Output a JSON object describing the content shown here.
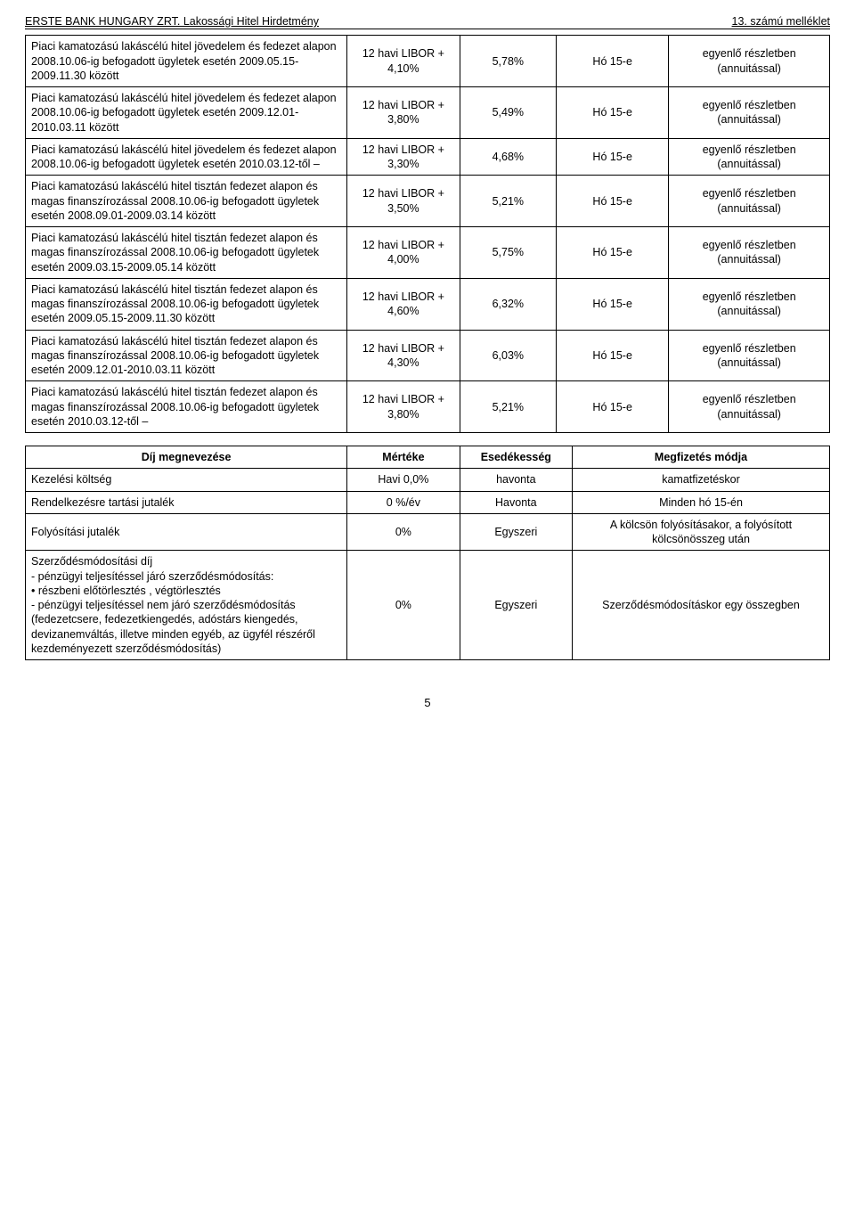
{
  "header": {
    "left": "ERSTE BANK HUNGARY ZRT. Lakossági Hitel Hirdetmény",
    "right": "13. számú melléklet"
  },
  "main_rows": [
    {
      "product": "Piaci kamatozású lakáscélú hitel jövedelem és fedezet alapon 2008.10.06-ig befogadott ügyletek esetén 2009.05.15-2009.11.30 között",
      "rate_line1": "12 havi LIBOR +",
      "rate_line2": "4,10%",
      "pct": "5,78%",
      "due": "Hó 15-e",
      "pay1": "egyenlő részletben",
      "pay2": "(annuitással)"
    },
    {
      "product": "Piaci kamatozású lakáscélú hitel jövedelem és fedezet alapon 2008.10.06-ig befogadott ügyletek esetén 2009.12.01-2010.03.11 között",
      "rate_line1": "12 havi LIBOR +",
      "rate_line2": "3,80%",
      "pct": "5,49%",
      "due": "Hó 15-e",
      "pay1": "egyenlő részletben",
      "pay2": "(annuitással)"
    },
    {
      "product": "Piaci kamatozású lakáscélú hitel jövedelem és fedezet alapon 2008.10.06-ig befogadott ügyletek esetén 2010.03.12-től –",
      "rate_line1": "12 havi LIBOR +",
      "rate_line2": "3,30%",
      "pct": "4,68%",
      "due": "Hó 15-e",
      "pay1": "egyenlő részletben",
      "pay2": "(annuitással)"
    },
    {
      "product": "Piaci kamatozású lakáscélú hitel tisztán fedezet alapon és magas finanszírozással 2008.10.06-ig befogadott ügyletek esetén 2008.09.01-2009.03.14 között",
      "rate_line1": "12 havi LIBOR +",
      "rate_line2": "3,50%",
      "pct": "5,21%",
      "due": "Hó 15-e",
      "pay1": "egyenlő részletben",
      "pay2": "(annuitással)"
    },
    {
      "product": "Piaci kamatozású lakáscélú hitel tisztán fedezet alapon és magas finanszírozással 2008.10.06-ig befogadott ügyletek esetén 2009.03.15-2009.05.14 között",
      "rate_line1": "12 havi LIBOR +",
      "rate_line2": "4,00%",
      "pct": "5,75%",
      "due": "Hó 15-e",
      "pay1": "egyenlő részletben",
      "pay2": "(annuitással)"
    },
    {
      "product": "Piaci kamatozású lakáscélú hitel tisztán fedezet alapon és magas finanszírozással 2008.10.06-ig befogadott ügyletek esetén 2009.05.15-2009.11.30 között",
      "rate_line1": "12 havi LIBOR +",
      "rate_line2": "4,60%",
      "pct": "6,32%",
      "due": "Hó 15-e",
      "pay1": "egyenlő részletben",
      "pay2": "(annuitással)"
    },
    {
      "product": "Piaci kamatozású lakáscélú hitel tisztán fedezet alapon és magas finanszírozással 2008.10.06-ig befogadott ügyletek esetén 2009.12.01-2010.03.11 között",
      "rate_line1": "12 havi LIBOR +",
      "rate_line2": "4,30%",
      "pct": "6,03%",
      "due": "Hó 15-e",
      "pay1": "egyenlő részletben",
      "pay2": "(annuitással)"
    },
    {
      "product": "Piaci kamatozású lakáscélú hitel tisztán fedezet alapon és magas finanszírozással 2008.10.06-ig befogadott ügyletek esetén 2010.03.12-től –",
      "rate_line1": "12 havi LIBOR +",
      "rate_line2": "3,80%",
      "pct": "5,21%",
      "due": "Hó 15-e",
      "pay1": "egyenlő részletben",
      "pay2": "(annuitással)"
    }
  ],
  "fees_header": {
    "c1": "Díj megnevezése",
    "c2": "Mértéke",
    "c3": "Esedékesség",
    "c4": "Megfizetés módja"
  },
  "fees_rows": [
    {
      "name": "Kezelési költség",
      "rate": "Havi 0,0%",
      "due": "havonta",
      "how": "kamatfizetéskor"
    },
    {
      "name": "Rendelkezésre tartási jutalék",
      "rate": "0 %/év",
      "due": "Havonta",
      "how": "Minden hó 15-én"
    },
    {
      "name": "Folyósítási jutalék",
      "rate": "0%",
      "due": "Egyszeri",
      "how": "A kölcsön folyósításakor, a folyósított kölcsönösszeg után"
    },
    {
      "name": "Szerződésmódosítási díj\n- pénzügyi teljesítéssel járó szerződésmódosítás:\n  • részbeni előtörlesztés , végtörlesztés\n- pénzügyi teljesítéssel nem járó szerződésmódosítás (fedezetcsere, fedezetkiengedés, adóstárs kiengedés, devizanemváltás, illetve minden egyéb, az ügyfél részéről kezdeményezett szerződésmódosítás)",
      "rate": "0%",
      "due": "Egyszeri",
      "how": "Szerződésmódosításkor egy összegben"
    }
  ],
  "page_number": "5"
}
